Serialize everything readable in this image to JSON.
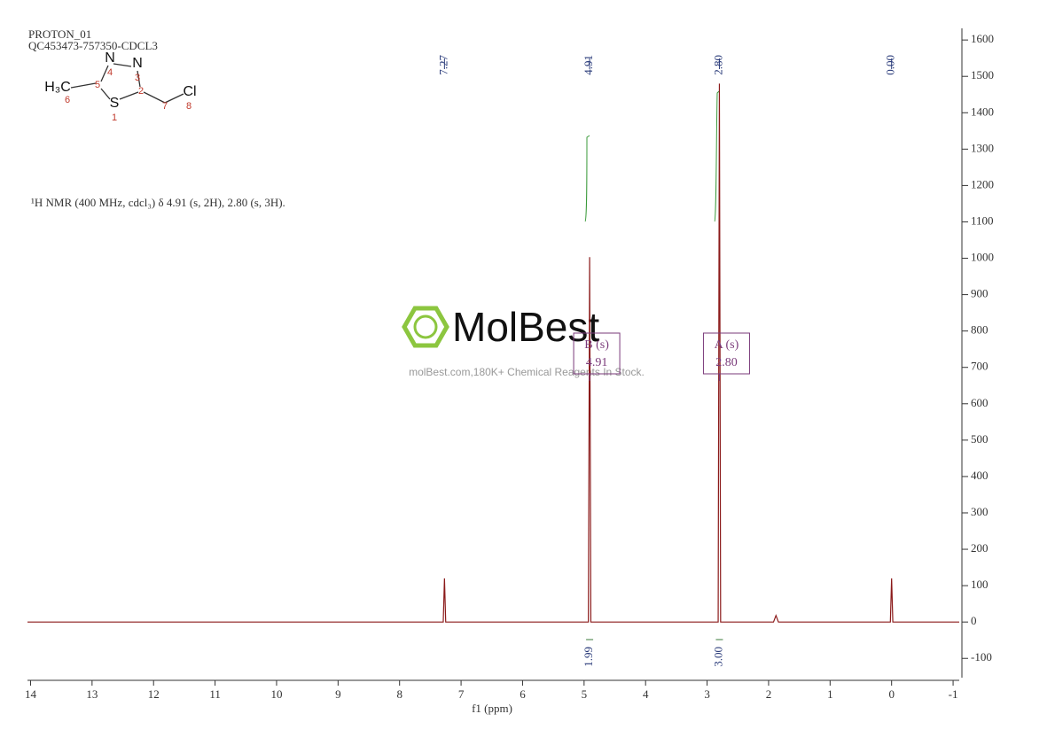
{
  "header": {
    "experiment": "PROTON_01",
    "sample": "QC453473-757350-CDCL3"
  },
  "structure": {
    "atom_labels": [
      "N",
      "N",
      "S",
      "H₃C",
      "Cl"
    ],
    "locants": [
      4,
      3,
      1,
      6,
      8,
      5,
      2,
      7
    ]
  },
  "description": "¹H NMR (400 MHz, cdcl₃) δ 4.91 (s, 2H), 2.80 (s, 3H).",
  "watermark": {
    "brand": "MolBest",
    "tagline": "molBest.com,180K+ Chemical Reagents In Stock."
  },
  "chart_data": {
    "type": "spectrum",
    "xlabel": "f1 (ppm)",
    "xlim": [
      14.05,
      -1.1
    ],
    "xticks": [
      14,
      13,
      12,
      11,
      10,
      9,
      8,
      7,
      6,
      5,
      4,
      3,
      2,
      1,
      0,
      -1
    ],
    "ylim": [
      -153,
      1632
    ],
    "yticks": [
      -100,
      0,
      100,
      200,
      300,
      400,
      500,
      600,
      700,
      800,
      900,
      1000,
      1100,
      1200,
      1300,
      1400,
      1500,
      1600
    ],
    "series": [
      {
        "color": "#8b1a1a",
        "x": [
          14.05,
          7.29,
          7.27,
          7.25,
          4.93,
          4.91,
          4.89,
          2.82,
          2.8,
          2.78,
          1.92,
          1.88,
          1.84,
          0.02,
          0,
          -0.02,
          -1.1
        ],
        "values": [
          0,
          0,
          120,
          0,
          0,
          1003,
          0,
          0,
          1480,
          0,
          0,
          18,
          0,
          0,
          120,
          0,
          0
        ]
      }
    ],
    "peak_labels": [
      {
        "value": 7.27,
        "label": "7.27"
      },
      {
        "value": 4.91,
        "label": "4.91"
      },
      {
        "value": 2.8,
        "label": "2.80"
      },
      {
        "value": 0,
        "label": "0.00"
      }
    ],
    "integrals": {
      "x": [
        4.91,
        2.8
      ],
      "values": [
        1.99,
        3
      ],
      "value_labels": [
        "1.99",
        "3.00"
      ]
    },
    "multiplets": [
      {
        "name": "B (s)",
        "shift": 4.91,
        "shift_label": "4.91"
      },
      {
        "name": "A (s)",
        "shift": 2.8,
        "shift_label": "2.80"
      }
    ]
  }
}
